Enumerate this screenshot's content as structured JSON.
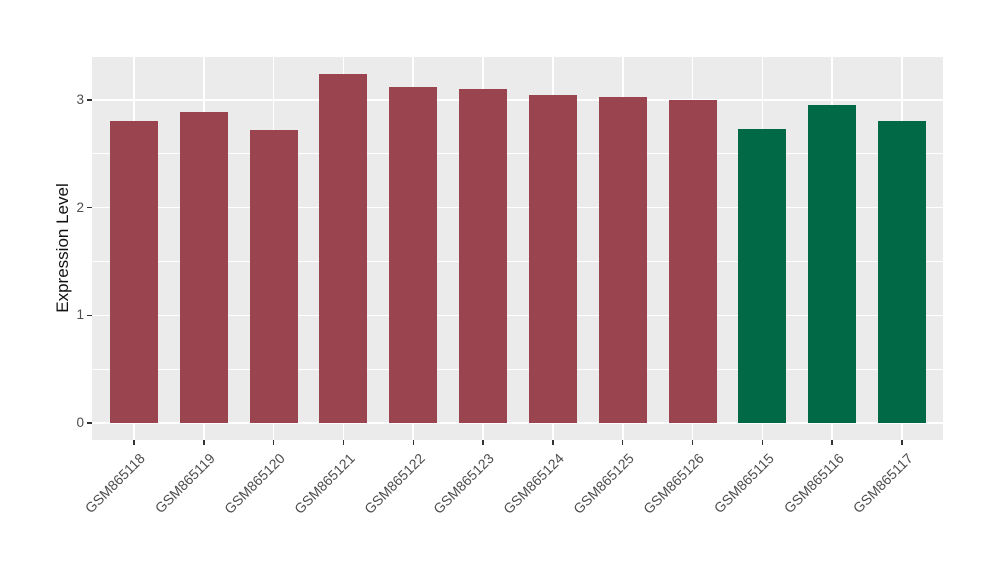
{
  "figure": {
    "background": "#ffffff",
    "panel_background": "#ebebeb",
    "grid_color": "#ffffff",
    "axis_text_color": "#4d4d4d",
    "axis_title_color": "#111111"
  },
  "chart_data": {
    "type": "bar",
    "title": "",
    "xlabel": "",
    "ylabel": "Expression Level",
    "categories": [
      "GSM865118",
      "GSM865119",
      "GSM865120",
      "GSM865121",
      "GSM865122",
      "GSM865123",
      "GSM865124",
      "GSM865125",
      "GSM865126",
      "GSM865115",
      "GSM865116",
      "GSM865117"
    ],
    "values": [
      2.8,
      2.89,
      2.72,
      3.24,
      3.12,
      3.1,
      3.05,
      3.03,
      3.0,
      2.73,
      2.95,
      2.8
    ],
    "bar_colors": [
      "#9a4450",
      "#9a4450",
      "#9a4450",
      "#9a4450",
      "#9a4450",
      "#9a4450",
      "#9a4450",
      "#9a4450",
      "#9a4450",
      "#026946",
      "#026946",
      "#026946"
    ],
    "group_colors": {
      "red_group": "#9a4450",
      "green_group": "#026946"
    },
    "ylim": [
      0,
      3.4
    ],
    "yticks": [
      0,
      1,
      2,
      3
    ],
    "ytick_labels": [
      "0",
      "1",
      "2",
      "3"
    ],
    "y_minor_ticks": [
      0.5,
      1.5,
      2.5
    ],
    "grid": true,
    "legend": false,
    "bar_orientation": "vertical",
    "x_label_rotation_deg": 45
  }
}
